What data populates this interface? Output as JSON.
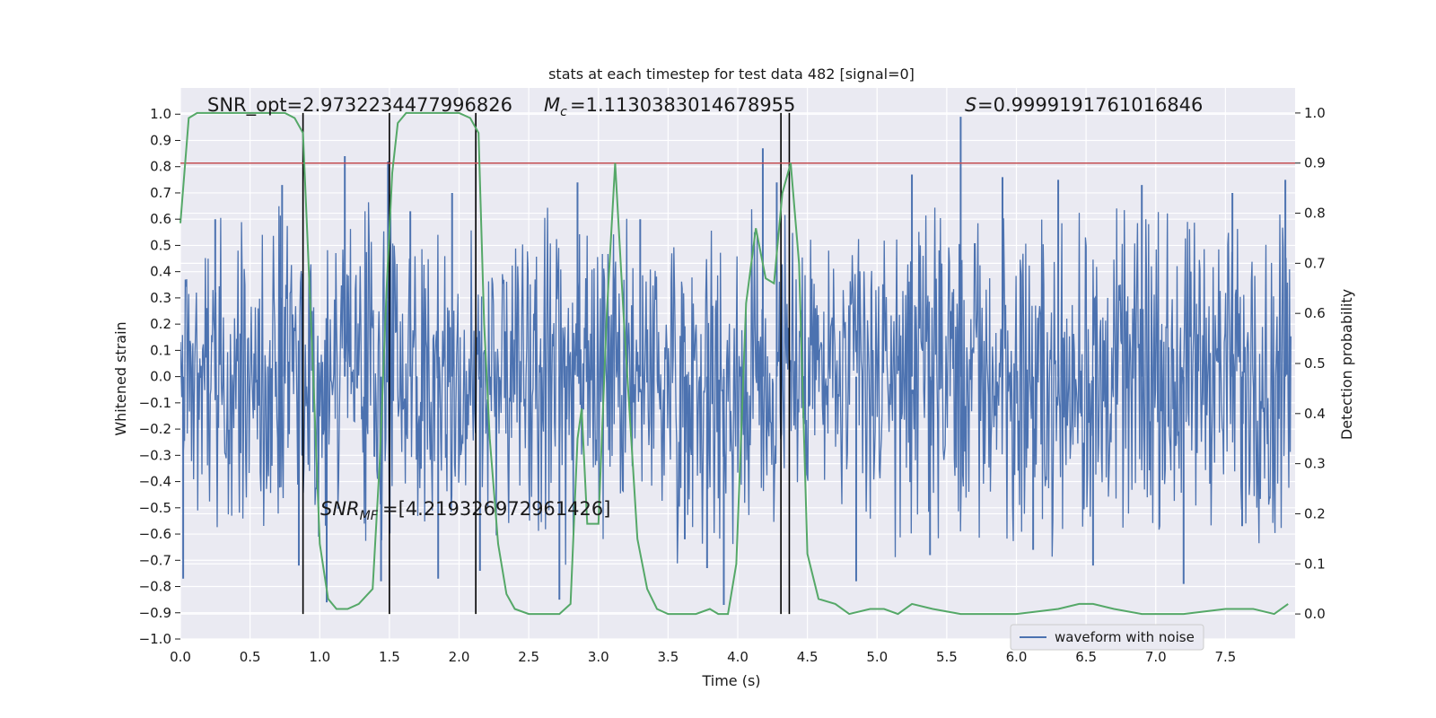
{
  "chart_data": {
    "type": "line",
    "title": "stats at each timestep for test data 482 [signal=0]",
    "xlabel": "Time (s)",
    "ylabel": "Whitened strain",
    "ylabel_right": "Detection probability",
    "xlim": [
      0.0,
      8.0
    ],
    "ylim": [
      -1.0,
      1.1
    ],
    "ylim_right": [
      -0.05,
      1.05
    ],
    "x_ticks": [
      "0.0",
      "0.5",
      "1.0",
      "1.5",
      "2.0",
      "2.5",
      "3.0",
      "3.5",
      "4.0",
      "4.5",
      "5.0",
      "5.5",
      "6.0",
      "6.5",
      "7.0",
      "7.5"
    ],
    "y_ticks": [
      "-1.0",
      "-0.9",
      "-0.8",
      "-0.7",
      "-0.6",
      "-0.5",
      "-0.4",
      "-0.3",
      "-0.2",
      "-0.1",
      "0.0",
      "0.1",
      "0.2",
      "0.3",
      "0.4",
      "0.5",
      "0.6",
      "0.7",
      "0.8",
      "0.9",
      "1.0"
    ],
    "y_ticks_right": [
      "0.0",
      "0.1",
      "0.2",
      "0.3",
      "0.4",
      "0.5",
      "0.6",
      "0.7",
      "0.8",
      "0.9",
      "1.0"
    ],
    "grid": true,
    "legend_position": "bottom-right",
    "annotations": {
      "snr_opt": "SNR_opt=2.9732234477996826",
      "mc": "=1.1130383014678955",
      "s": "=0.9999191761016846",
      "snr_mf": "=[4.219326972961426]"
    },
    "threshold_right": 0.9,
    "vlines_x": [
      0.88,
      1.5,
      2.12,
      4.31,
      4.37
    ],
    "vline_range_right": [
      0.0,
      1.0
    ],
    "series": [
      {
        "name": "waveform with noise",
        "axis": "left",
        "color": "#4c72b0",
        "noise_envelope": 0.24,
        "peaks": [
          {
            "x": 0.02,
            "y": -0.77
          },
          {
            "x": 0.25,
            "y": 0.6
          },
          {
            "x": 0.73,
            "y": 0.73
          },
          {
            "x": 0.85,
            "y": -0.72
          },
          {
            "x": 1.05,
            "y": -0.86
          },
          {
            "x": 1.18,
            "y": 0.84
          },
          {
            "x": 1.44,
            "y": -0.78
          },
          {
            "x": 1.49,
            "y": 0.82
          },
          {
            "x": 1.65,
            "y": 0.63
          },
          {
            "x": 1.85,
            "y": -0.77
          },
          {
            "x": 1.95,
            "y": 0.7
          },
          {
            "x": 2.15,
            "y": -0.74
          },
          {
            "x": 2.72,
            "y": -0.85
          },
          {
            "x": 2.85,
            "y": 0.74
          },
          {
            "x": 3.3,
            "y": 0.6
          },
          {
            "x": 3.62,
            "y": -0.62
          },
          {
            "x": 3.78,
            "y": -0.73
          },
          {
            "x": 3.9,
            "y": -0.87
          },
          {
            "x": 4.18,
            "y": 0.87
          },
          {
            "x": 4.28,
            "y": 0.74
          },
          {
            "x": 4.85,
            "y": -0.78
          },
          {
            "x": 5.25,
            "y": 0.77
          },
          {
            "x": 5.38,
            "y": -0.68
          },
          {
            "x": 5.6,
            "y": 0.99
          },
          {
            "x": 5.9,
            "y": 0.76
          },
          {
            "x": 6.12,
            "y": -0.66
          },
          {
            "x": 6.3,
            "y": 0.75
          },
          {
            "x": 6.55,
            "y": -0.72
          },
          {
            "x": 6.9,
            "y": 0.73
          },
          {
            "x": 7.2,
            "y": -0.79
          },
          {
            "x": 7.55,
            "y": 0.7
          },
          {
            "x": 7.62,
            "y": -0.57
          },
          {
            "x": 7.93,
            "y": 0.75
          }
        ]
      },
      {
        "name": "detection probability",
        "axis": "right",
        "color": "#55a868",
        "points": [
          [
            0.0,
            0.78
          ],
          [
            0.06,
            0.99
          ],
          [
            0.12,
            1.0
          ],
          [
            0.3,
            1.0
          ],
          [
            0.55,
            1.0
          ],
          [
            0.75,
            1.0
          ],
          [
            0.82,
            0.99
          ],
          [
            0.88,
            0.96
          ],
          [
            0.95,
            0.5
          ],
          [
            1.0,
            0.14
          ],
          [
            1.06,
            0.03
          ],
          [
            1.12,
            0.01
          ],
          [
            1.2,
            0.01
          ],
          [
            1.28,
            0.02
          ],
          [
            1.38,
            0.05
          ],
          [
            1.43,
            0.3
          ],
          [
            1.48,
            0.65
          ],
          [
            1.52,
            0.88
          ],
          [
            1.56,
            0.98
          ],
          [
            1.62,
            1.0
          ],
          [
            1.8,
            1.0
          ],
          [
            2.0,
            1.0
          ],
          [
            2.08,
            0.99
          ],
          [
            2.14,
            0.96
          ],
          [
            2.18,
            0.58
          ],
          [
            2.22,
            0.35
          ],
          [
            2.28,
            0.14
          ],
          [
            2.34,
            0.04
          ],
          [
            2.4,
            0.01
          ],
          [
            2.5,
            0.0
          ],
          [
            2.6,
            0.0
          ],
          [
            2.72,
            0.0
          ],
          [
            2.8,
            0.02
          ],
          [
            2.85,
            0.35
          ],
          [
            2.88,
            0.41
          ],
          [
            2.92,
            0.18
          ],
          [
            3.0,
            0.18
          ],
          [
            3.06,
            0.6
          ],
          [
            3.12,
            0.9
          ],
          [
            3.18,
            0.6
          ],
          [
            3.28,
            0.15
          ],
          [
            3.35,
            0.05
          ],
          [
            3.42,
            0.01
          ],
          [
            3.5,
            0.0
          ],
          [
            3.7,
            0.0
          ],
          [
            3.8,
            0.01
          ],
          [
            3.86,
            0.0
          ],
          [
            3.93,
            0.0
          ],
          [
            3.99,
            0.1
          ],
          [
            4.06,
            0.62
          ],
          [
            4.13,
            0.77
          ],
          [
            4.2,
            0.67
          ],
          [
            4.26,
            0.66
          ],
          [
            4.32,
            0.84
          ],
          [
            4.38,
            0.9
          ],
          [
            4.44,
            0.7
          ],
          [
            4.5,
            0.12
          ],
          [
            4.58,
            0.03
          ],
          [
            4.7,
            0.02
          ],
          [
            4.8,
            0.0
          ],
          [
            4.95,
            0.01
          ],
          [
            5.05,
            0.01
          ],
          [
            5.15,
            0.0
          ],
          [
            5.25,
            0.02
          ],
          [
            5.4,
            0.01
          ],
          [
            5.6,
            0.0
          ],
          [
            6.0,
            0.0
          ],
          [
            6.3,
            0.01
          ],
          [
            6.45,
            0.02
          ],
          [
            6.55,
            0.02
          ],
          [
            6.7,
            0.01
          ],
          [
            6.9,
            0.0
          ],
          [
            7.2,
            0.0
          ],
          [
            7.5,
            0.01
          ],
          [
            7.7,
            0.01
          ],
          [
            7.85,
            0.0
          ],
          [
            7.95,
            0.02
          ]
        ]
      }
    ]
  }
}
